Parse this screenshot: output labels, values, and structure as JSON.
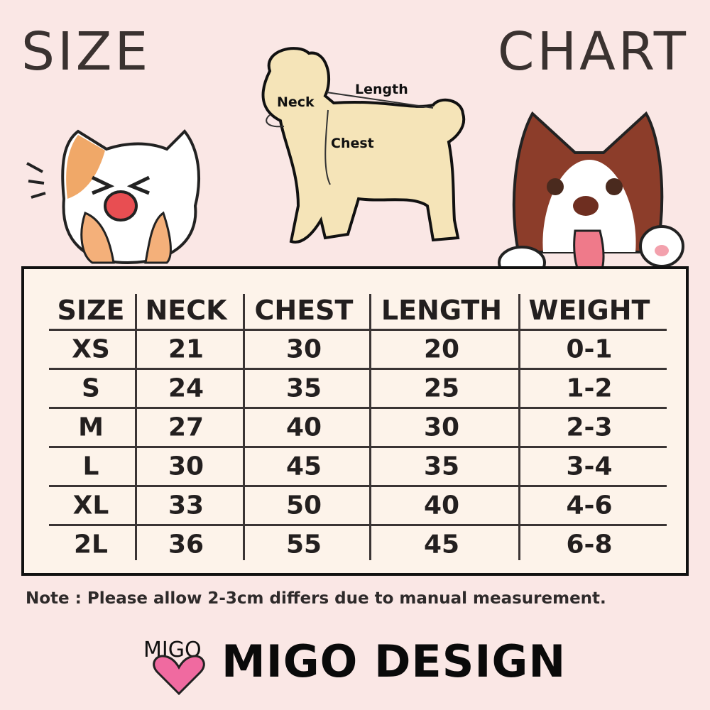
{
  "header": {
    "title_left": "SIZE",
    "title_right": "CHART"
  },
  "diagram": {
    "labels": {
      "neck": "Neck",
      "length": "Length",
      "chest": "Chest"
    }
  },
  "table": {
    "columns": [
      "SIZE",
      "NECK",
      "CHEST",
      "LENGTH",
      "WEIGHT"
    ],
    "rows": [
      [
        "XS",
        "21",
        "30",
        "20",
        "0-1"
      ],
      [
        "S",
        "24",
        "35",
        "25",
        "1-2"
      ],
      [
        "M",
        "27",
        "40",
        "30",
        "2-3"
      ],
      [
        "L",
        "30",
        "45",
        "35",
        "3-4"
      ],
      [
        "XL",
        "33",
        "50",
        "40",
        "4-6"
      ],
      [
        "2L",
        "36",
        "55",
        "45",
        "6-8"
      ]
    ]
  },
  "note": "Note : Please allow 2-3cm differs due to manual measurement.",
  "brand": {
    "logo_text": "MIGO",
    "name": "MIGO DESIGN"
  },
  "colors": {
    "background": "#fae7e5",
    "table_bg": "#fdf3ea",
    "dog_fill": "#f5e4b8",
    "heart": "#f06aa0"
  }
}
